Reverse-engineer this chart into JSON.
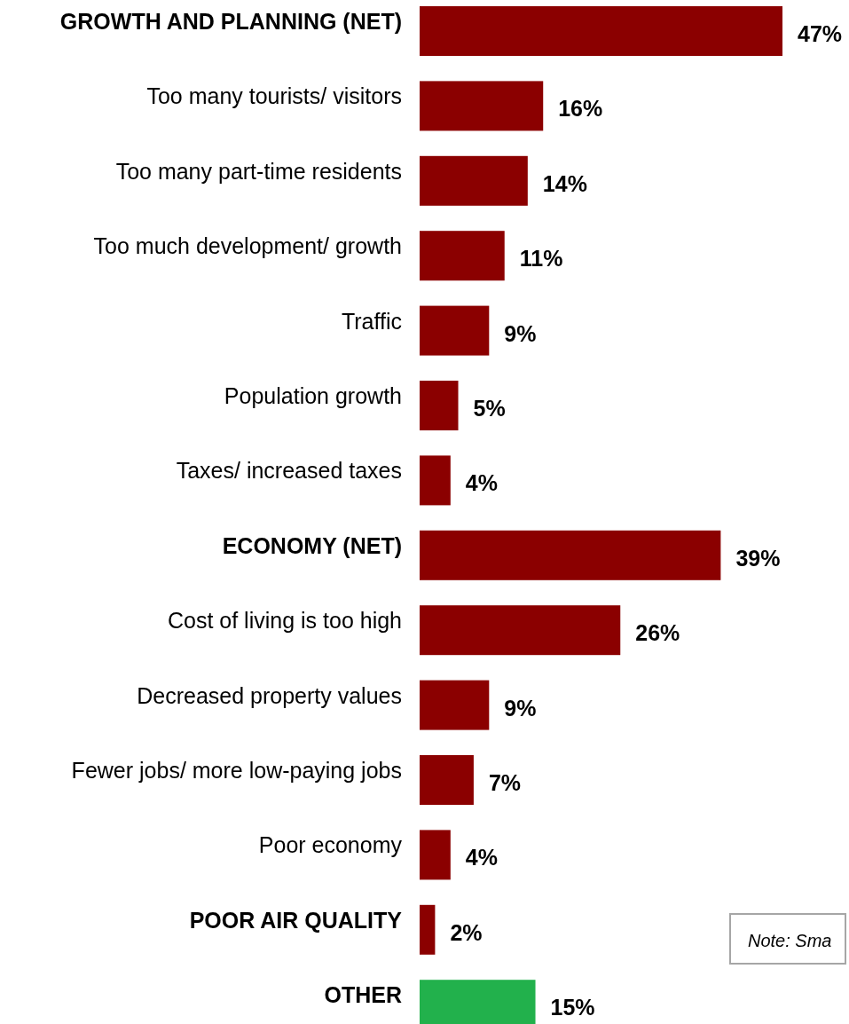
{
  "chart_data": {
    "type": "bar",
    "orientation": "horizontal",
    "categories": [
      "GROWTH AND PLANNING (NET)",
      "Too many tourists/ visitors",
      "Too many part-time residents",
      "Too much development/ growth",
      "Traffic",
      "Population growth",
      "Taxes/ increased taxes",
      "ECONOMY (NET)",
      "Cost of living is too high",
      "Decreased property values",
      "Fewer jobs/ more low-paying jobs",
      "Poor economy",
      "POOR AIR QUALITY",
      "OTHER"
    ],
    "values": [
      47,
      16,
      14,
      11,
      9,
      5,
      4,
      39,
      26,
      9,
      7,
      4,
      2,
      15
    ],
    "value_labels": [
      "47%",
      "16%",
      "14%",
      "11%",
      "9%",
      "5%",
      "4%",
      "39%",
      "26%",
      "9%",
      "7%",
      "4%",
      "2%",
      "15%"
    ],
    "colors": [
      "#8b0000",
      "#8b0000",
      "#8b0000",
      "#8b0000",
      "#8b0000",
      "#8b0000",
      "#8b0000",
      "#8b0000",
      "#8b0000",
      "#8b0000",
      "#8b0000",
      "#8b0000",
      "#8b0000",
      "#22b14c"
    ],
    "annotations": [
      "Note: Sma"
    ]
  }
}
